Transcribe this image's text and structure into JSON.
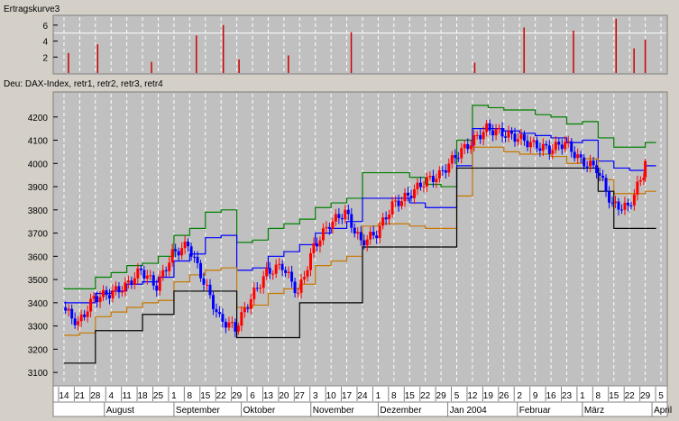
{
  "top_panel": {
    "title": "Ertragskurve3",
    "y_ticks": [
      "6",
      "4",
      "2"
    ],
    "y_range": [
      0,
      7
    ],
    "reference_line": 5,
    "bars": [
      {
        "date": "2003-07-16",
        "value": 2.5
      },
      {
        "date": "2003-07-29",
        "value": 3.6
      },
      {
        "date": "2003-08-22",
        "value": 1.4
      },
      {
        "date": "2003-09-11",
        "value": 4.7
      },
      {
        "date": "2003-09-23",
        "value": 6.0
      },
      {
        "date": "2003-09-30",
        "value": 1.7
      },
      {
        "date": "2003-10-22",
        "value": 2.2
      },
      {
        "date": "2003-11-19",
        "value": 5.1
      },
      {
        "date": "2004-01-13",
        "value": 1.3
      },
      {
        "date": "2004-02-04",
        "value": 5.7
      },
      {
        "date": "2004-02-26",
        "value": 5.3
      },
      {
        "date": "2004-03-16",
        "value": 6.8
      },
      {
        "date": "2004-03-24",
        "value": 3.1
      },
      {
        "date": "2004-03-29",
        "value": 4.2
      }
    ],
    "bar_color": "#cc0000"
  },
  "legend_line": "Deu: DAX-Index,  retr1,  retr2,  retr3,  retr4",
  "chart_data": {
    "type": "line",
    "title": "",
    "xlabel": "",
    "ylabel": "",
    "x": [
      "2003-07-14",
      "2003-07-21",
      "2003-07-28",
      "2003-08-04",
      "2003-08-11",
      "2003-08-18",
      "2003-08-25",
      "2003-09-01",
      "2003-09-08",
      "2003-09-15",
      "2003-09-22",
      "2003-09-29",
      "2003-10-06",
      "2003-10-13",
      "2003-10-20",
      "2003-10-27",
      "2003-11-03",
      "2003-11-10",
      "2003-11-17",
      "2003-11-24",
      "2003-12-01",
      "2003-12-08",
      "2003-12-15",
      "2003-12-22",
      "2003-12-29",
      "2004-01-05",
      "2004-01-12",
      "2004-01-19",
      "2004-01-26",
      "2004-02-02",
      "2004-02-09",
      "2004-02-16",
      "2004-02-23",
      "2004-03-01",
      "2004-03-08",
      "2004-03-15",
      "2004-03-22",
      "2004-03-29"
    ],
    "ylim": [
      3050,
      4300
    ],
    "y_ticks": [
      3100,
      3200,
      3300,
      3400,
      3500,
      3600,
      3700,
      3800,
      3900,
      4000,
      4100,
      4200
    ],
    "grid": true,
    "series": [
      {
        "name": "DAX-Index",
        "style": "candlestick",
        "values": [
          3380,
          3310,
          3420,
          3440,
          3470,
          3540,
          3470,
          3610,
          3650,
          3490,
          3330,
          3290,
          3420,
          3530,
          3560,
          3440,
          3640,
          3740,
          3790,
          3660,
          3700,
          3820,
          3860,
          3920,
          3950,
          4030,
          4090,
          4150,
          4130,
          4110,
          4080,
          4060,
          4090,
          4010,
          3980,
          3820,
          3810,
          3960
        ],
        "up_color": "#ff0000",
        "down_color": "#0000ff"
      },
      {
        "name": "retr1",
        "color": "#008000",
        "values": [
          3460,
          3460,
          3510,
          3530,
          3560,
          3570,
          3600,
          3690,
          3720,
          3790,
          3800,
          3660,
          3670,
          3720,
          3740,
          3760,
          3810,
          3830,
          3850,
          3960,
          3960,
          3960,
          3940,
          3910,
          3900,
          4100,
          4250,
          4240,
          4230,
          4230,
          4210,
          4200,
          4170,
          4180,
          4110,
          4070,
          4070,
          4090
        ]
      },
      {
        "name": "retr2",
        "color": "#0000ff",
        "values": [
          3400,
          3400,
          3440,
          3450,
          3480,
          3490,
          3510,
          3580,
          3610,
          3680,
          3690,
          3540,
          3550,
          3600,
          3620,
          3650,
          3700,
          3720,
          3750,
          3850,
          3850,
          3850,
          3830,
          3810,
          3810,
          3990,
          4150,
          4150,
          4140,
          4130,
          4120,
          4110,
          4090,
          4100,
          4010,
          3980,
          3970,
          3990
        ]
      },
      {
        "name": "retr3",
        "color": "#c87800",
        "values": [
          3260,
          3270,
          3340,
          3360,
          3380,
          3400,
          3410,
          3490,
          3520,
          3540,
          3550,
          3380,
          3390,
          3440,
          3460,
          3480,
          3560,
          3580,
          3600,
          3730,
          3740,
          3740,
          3730,
          3720,
          3720,
          3860,
          4070,
          4070,
          4050,
          4040,
          4040,
          4030,
          4000,
          4020,
          3930,
          3870,
          3870,
          3880
        ]
      },
      {
        "name": "retr4",
        "color": "#000000",
        "values": [
          3140,
          3140,
          3280,
          3280,
          3280,
          3350,
          3350,
          3450,
          3450,
          3450,
          3450,
          3250,
          3250,
          3250,
          3250,
          3400,
          3400,
          3400,
          3400,
          3640,
          3640,
          3640,
          3640,
          3640,
          3640,
          3980,
          3980,
          3980,
          3980,
          3980,
          3980,
          3980,
          3980,
          3980,
          3880,
          3720,
          3720,
          3720
        ]
      }
    ],
    "x_day_labels": [
      "14",
      "21",
      "28",
      "4",
      "11",
      "18",
      "25",
      "1",
      "8",
      "15",
      "22",
      "29",
      "6",
      "13",
      "20",
      "27",
      "3",
      "10",
      "17",
      "24",
      "1",
      "8",
      "15",
      "22",
      "29",
      "5",
      "12",
      "19",
      "26",
      "2",
      "9",
      "16",
      "23",
      "1",
      "8",
      "15",
      "22",
      "29",
      "5"
    ],
    "x_month_labels": [
      "August",
      "September",
      "Oktober",
      "November",
      "Dezember",
      "Jan 2004",
      "Februar",
      "März",
      "April"
    ]
  }
}
